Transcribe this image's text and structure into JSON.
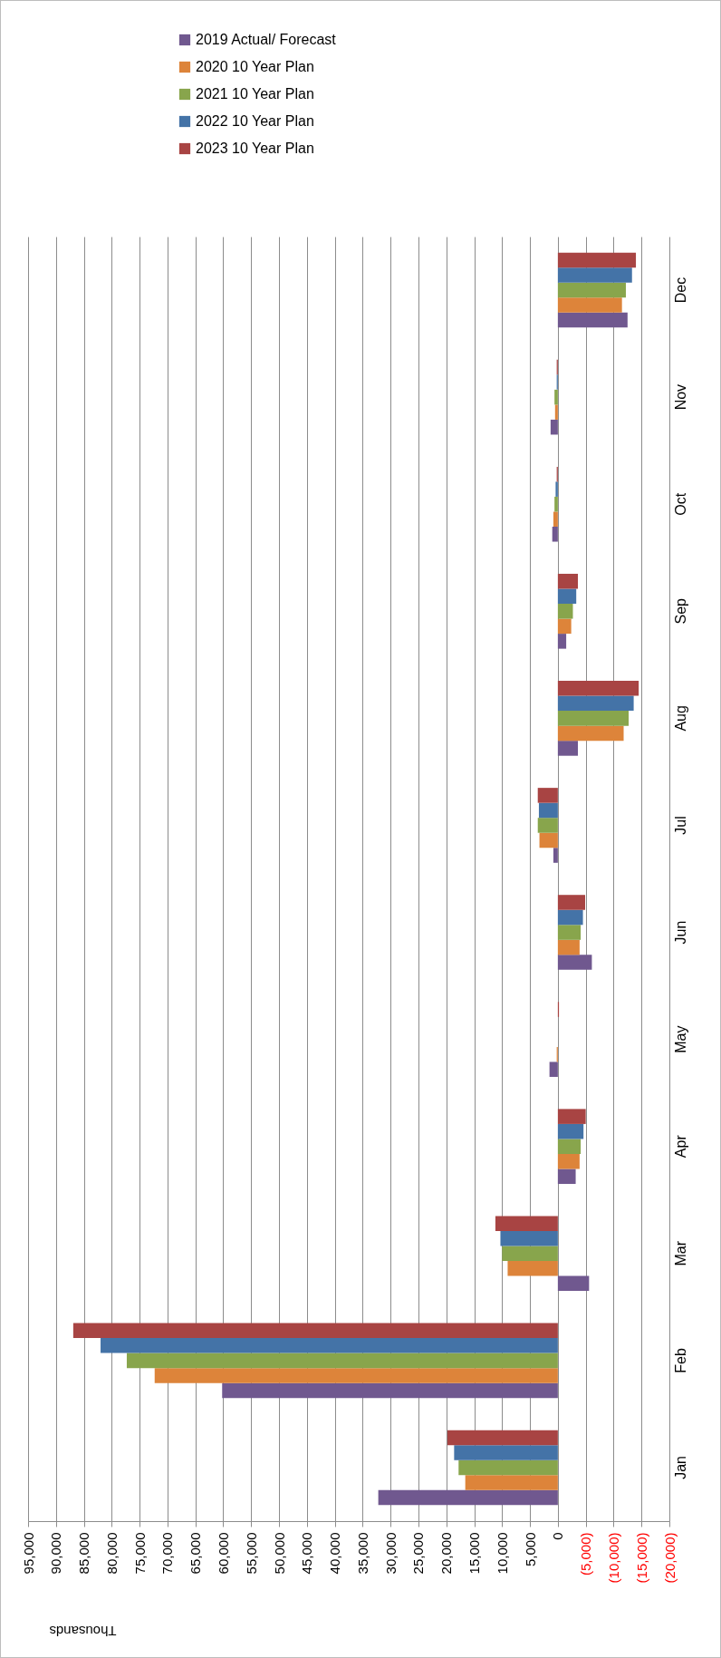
{
  "chart_data": {
    "type": "bar",
    "orientation": "horizontal",
    "xlabel": "Thousands",
    "categories": [
      "Dec",
      "Nov",
      "Oct",
      "Sep",
      "Aug",
      "Jul",
      "Jun",
      "May",
      "Apr",
      "Mar",
      "Feb",
      "Jan"
    ],
    "series": [
      {
        "name": "2019 Actual/ Forecast",
        "color": "#70588f",
        "values": [
          -12500,
          1300,
          1000,
          -1500,
          -3600,
          800,
          -6100,
          1500,
          -3200,
          -5600,
          60200,
          32200
        ]
      },
      {
        "name": "2020 10 Year Plan",
        "color": "#dd843a",
        "values": [
          -11500,
          500,
          800,
          -2400,
          -11800,
          3300,
          -3900,
          200,
          -3900,
          9000,
          72300,
          16600
        ]
      },
      {
        "name": "2021 10 Year Plan",
        "color": "#88a54c",
        "values": [
          -12200,
          600,
          600,
          -2700,
          -12700,
          3600,
          -4100,
          0,
          -4100,
          10000,
          77300,
          17800
        ]
      },
      {
        "name": "2022 10 Year Plan",
        "color": "#4473a7",
        "values": [
          -13300,
          200,
          400,
          -3300,
          -13600,
          3400,
          -4500,
          0,
          -4600,
          10300,
          82000,
          18600
        ]
      },
      {
        "name": "2023 10 Year Plan",
        "color": "#a84443",
        "values": [
          -14000,
          200,
          200,
          -3600,
          -14500,
          3600,
          -4900,
          -200,
          -5000,
          11200,
          86900,
          19800
        ]
      }
    ],
    "xlim": [
      95000,
      -20000
    ],
    "xticks": [
      {
        "value": 95000,
        "label": "95,000"
      },
      {
        "value": 90000,
        "label": "90,000"
      },
      {
        "value": 85000,
        "label": "85,000"
      },
      {
        "value": 80000,
        "label": "80,000"
      },
      {
        "value": 75000,
        "label": "75,000"
      },
      {
        "value": 70000,
        "label": "70,000"
      },
      {
        "value": 65000,
        "label": "65,000"
      },
      {
        "value": 60000,
        "label": "60,000"
      },
      {
        "value": 55000,
        "label": "55,000"
      },
      {
        "value": 50000,
        "label": "50,000"
      },
      {
        "value": 45000,
        "label": "45,000"
      },
      {
        "value": 40000,
        "label": "40,000"
      },
      {
        "value": 35000,
        "label": "35,000"
      },
      {
        "value": 30000,
        "label": "30,000"
      },
      {
        "value": 25000,
        "label": "25,000"
      },
      {
        "value": 20000,
        "label": "20,000"
      },
      {
        "value": 15000,
        "label": "15,000"
      },
      {
        "value": 10000,
        "label": "10,000"
      },
      {
        "value": 5000,
        "label": "5,000"
      },
      0,
      {
        "value": -5000,
        "label": "(5,000)"
      },
      {
        "value": -10000,
        "label": "(10,000)"
      },
      {
        "value": -15000,
        "label": "(15,000)"
      },
      {
        "value": -20000,
        "label": "(20,000)"
      }
    ],
    "grid": "x",
    "legend": "top"
  }
}
